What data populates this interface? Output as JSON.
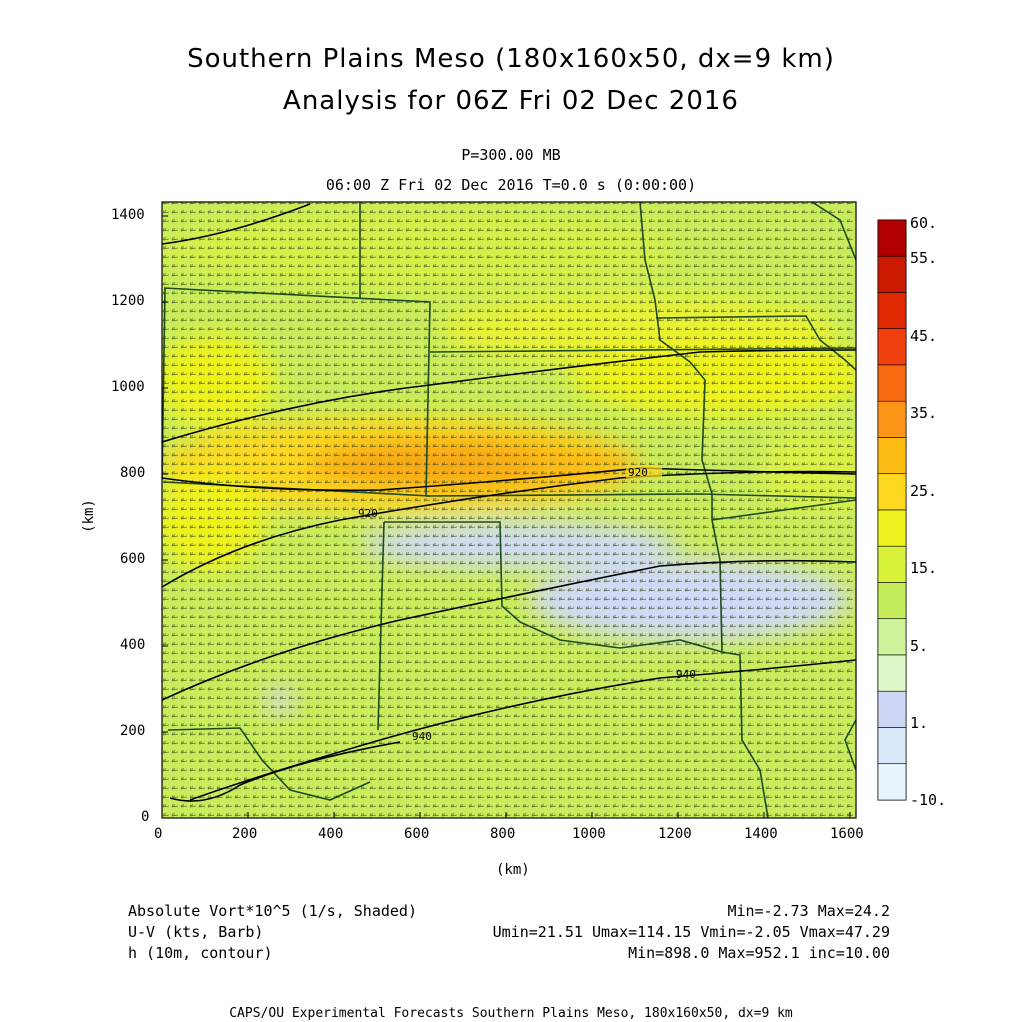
{
  "header": {
    "title_line1": "Southern Plains Meso (180x160x50, dx=9 km)",
    "title_line2": "Analysis for 06Z Fri 02 Dec 2016",
    "level": "P=300.00 MB",
    "time_line": "06:00 Z Fri 02 Dec 2016    T=0.0 s (0:00:00)"
  },
  "axes": {
    "x_unit": "(km)",
    "y_unit": "(km)",
    "x_ticks": [
      "0",
      "200",
      "400",
      "600",
      "800",
      "1000",
      "1200",
      "1400",
      "1600"
    ],
    "y_ticks": [
      "0",
      "200",
      "400",
      "600",
      "800",
      "1000",
      "1200",
      "1400"
    ]
  },
  "colorbar": {
    "labels": [
      "60.",
      "55.",
      "45.",
      "35.",
      "25.",
      "15.",
      "5.",
      "1.",
      "-10."
    ],
    "colors": [
      "#b20000",
      "#cc1a00",
      "#e02800",
      "#f04010",
      "#f86a10",
      "#fb9618",
      "#fcbc14",
      "#fcd820",
      "#eef21e",
      "#d9f23a",
      "#c4ec5a",
      "#cdf29a",
      "#dff7c8",
      "#cfd7f6",
      "#d8e8f8",
      "#e8f4fb"
    ]
  },
  "contours": {
    "labels": [
      "920",
      "920",
      "940",
      "940"
    ]
  },
  "legend": {
    "row1_name": "Absolute Vort*10^5 (1/s, Shaded)",
    "row1_stats": "Min=-2.73 Max=24.2",
    "row2_name": "U-V (kts, Barb)",
    "row2_stats": "Umin=21.51 Umax=114.15 Vmin=-2.05 Vmax=47.29",
    "row3_name": "h (10m, contour)",
    "row3_stats": "Min=898.0 Max=952.1 inc=10.00"
  },
  "footer": "CAPS/OU Experimental Forecasts  Southern Plains Meso, 180x160x50, dx=9 km"
}
